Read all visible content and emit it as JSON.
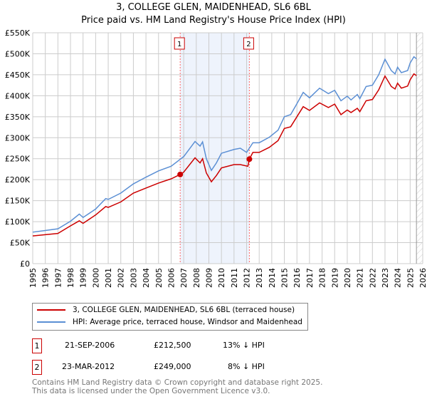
{
  "title": "3, COLLEGE GLEN, MAIDENHEAD, SL6 6BL",
  "subtitle": "Price paid vs. HM Land Registry's House Price Index (HPI)",
  "chart_data": {
    "type": "line",
    "xlim": [
      1995,
      2026
    ],
    "ylim": [
      0,
      550000
    ],
    "x_ticks": [
      "1995",
      "1996",
      "1997",
      "1998",
      "1999",
      "2000",
      "2001",
      "2002",
      "2003",
      "2004",
      "2005",
      "2006",
      "2007",
      "2008",
      "2009",
      "2010",
      "2011",
      "2012",
      "2013",
      "2014",
      "2015",
      "2016",
      "2017",
      "2018",
      "2019",
      "2020",
      "2021",
      "2022",
      "2023",
      "2024",
      "2025",
      "2026"
    ],
    "y_ticks": [
      {
        "v": 0,
        "l": "£0"
      },
      {
        "v": 50000,
        "l": "£50K"
      },
      {
        "v": 100000,
        "l": "£100K"
      },
      {
        "v": 150000,
        "l": "£150K"
      },
      {
        "v": 200000,
        "l": "£200K"
      },
      {
        "v": 250000,
        "l": "£250K"
      },
      {
        "v": 300000,
        "l": "£300K"
      },
      {
        "v": 350000,
        "l": "£350K"
      },
      {
        "v": 400000,
        "l": "£400K"
      },
      {
        "v": 450000,
        "l": "£450K"
      },
      {
        "v": 500000,
        "l": "£500K"
      },
      {
        "v": 550000,
        "l": "£550K"
      }
    ],
    "shaded_range": [
      2006.72,
      2012.22
    ],
    "hatched_from": 2025.5,
    "series": [
      {
        "name": "3, COLLEGE GLEN, MAIDENHEAD, SL6 6BL (terraced house)",
        "color": "#cc0000",
        "x": [
          1995,
          1996,
          1997,
          1998,
          1998.7,
          1999,
          2000,
          2000.8,
          2001,
          2002,
          2003,
          2004,
          2005,
          2006,
          2006.72,
          2007,
          2007.9,
          2008.3,
          2008.5,
          2008.8,
          2009.2,
          2009.6,
          2010,
          2011,
          2011.5,
          2012.1,
          2012.22,
          2012.5,
          2013,
          2013.8,
          2014.5,
          2015,
          2015.5,
          2016,
          2016.5,
          2017,
          2017.8,
          2018.5,
          2019,
          2019.5,
          2020,
          2020.3,
          2020.8,
          2021,
          2021.5,
          2022,
          2022.5,
          2023,
          2023.5,
          2023.8,
          2024,
          2024.3,
          2024.8,
          2025,
          2025.3,
          2025.5
        ],
        "y": [
          66000,
          69000,
          72000,
          90000,
          102000,
          96000,
          116000,
          136000,
          134000,
          147000,
          168000,
          180000,
          192000,
          202000,
          212500,
          218000,
          252000,
          240000,
          250000,
          216000,
          195000,
          210000,
          228000,
          236000,
          236000,
          232000,
          249000,
          265000,
          265000,
          277000,
          293000,
          322000,
          326000,
          350000,
          374000,
          365000,
          383000,
          372000,
          380000,
          355000,
          366000,
          360000,
          370000,
          362000,
          388000,
          391000,
          414000,
          447000,
          422000,
          416000,
          430000,
          418000,
          423000,
          438000,
          452000,
          448000
        ]
      },
      {
        "name": "HPI: Average price, terraced house, Windsor and Maidenhead",
        "color": "#5b8fd4",
        "x": [
          1995,
          1996,
          1997,
          1998,
          1998.7,
          1999,
          2000,
          2000.8,
          2001,
          2002,
          2003,
          2004,
          2005,
          2006,
          2007,
          2007.9,
          2008.3,
          2008.5,
          2008.8,
          2009.2,
          2009.6,
          2010,
          2011,
          2011.5,
          2012,
          2012.5,
          2013,
          2013.8,
          2014.5,
          2015,
          2015.5,
          2016,
          2016.5,
          2017,
          2017.8,
          2018.5,
          2019,
          2019.5,
          2020,
          2020.3,
          2020.8,
          2021,
          2021.5,
          2022,
          2022.5,
          2023,
          2023.5,
          2023.8,
          2024,
          2024.3,
          2024.8,
          2025,
          2025.3,
          2025.5
        ],
        "y": [
          75000,
          79000,
          83000,
          101000,
          118000,
          110000,
          130000,
          155000,
          153000,
          168000,
          190000,
          206000,
          221000,
          232000,
          255000,
          291000,
          280000,
          290000,
          250000,
          222000,
          240000,
          263000,
          272000,
          275000,
          265000,
          288000,
          288000,
          301000,
          318000,
          350000,
          355000,
          381000,
          408000,
          395000,
          418000,
          405000,
          413000,
          388000,
          399000,
          390000,
          403000,
          393000,
          422000,
          425000,
          450000,
          487000,
          460000,
          452000,
          468000,
          455000,
          460000,
          478000,
          493000,
          488000
        ]
      }
    ],
    "sales": [
      {
        "label": "1",
        "x": 2006.72,
        "y": 212500
      },
      {
        "label": "2",
        "x": 2012.22,
        "y": 249000
      }
    ]
  },
  "legend": [
    {
      "label": "3, COLLEGE GLEN, MAIDENHEAD, SL6 6BL (terraced house)",
      "color": "#cc0000"
    },
    {
      "label": "HPI: Average price, terraced house, Windsor and Maidenhead",
      "color": "#5b8fd4"
    }
  ],
  "table": [
    {
      "n": "1",
      "date": "21-SEP-2006",
      "price": "£212,500",
      "hpi": "13% ↓ HPI"
    },
    {
      "n": "2",
      "date": "23-MAR-2012",
      "price": "£249,000",
      "hpi": "8% ↓ HPI"
    }
  ],
  "footer": [
    "Contains HM Land Registry data © Crown copyright and database right 2025.",
    "This data is licensed under the Open Government Licence v3.0."
  ]
}
